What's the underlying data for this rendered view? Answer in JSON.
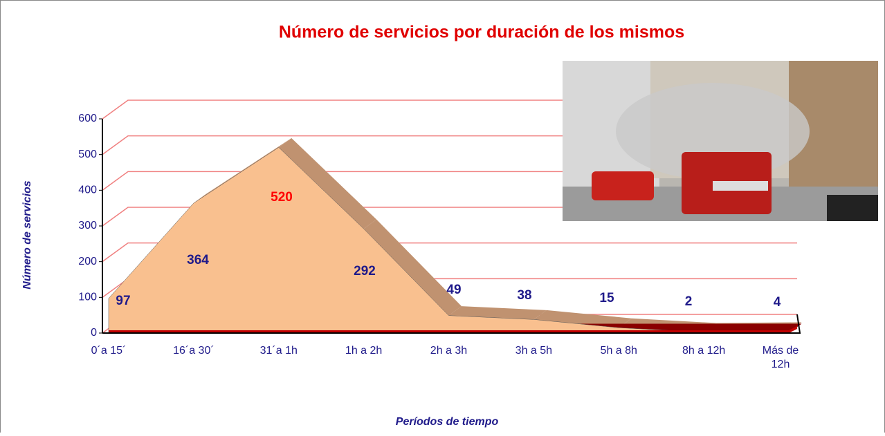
{
  "chart_data": {
    "type": "area3d",
    "title": "Número de servicios por duración de los mismos",
    "y_label": "Número de servicios",
    "x_label": "Períodos de tiempo",
    "categories": [
      "0´a 15´",
      "16´a 30´",
      "31´a 1h",
      "1h a 2h",
      "2h a 3h",
      "3h a 5h",
      "5h a 8h",
      "8h a 12h",
      "Más de 12h"
    ],
    "values": [
      97,
      364,
      520,
      292,
      49,
      38,
      15,
      2,
      4
    ],
    "color": "#f9c08f",
    "value_label_colors": [
      "#1f1a8a",
      "#1f1a8a",
      "#ff0000",
      "#1f1a8a",
      "#1f1a8a",
      "#1f1a8a",
      "#1f1a8a",
      "#1f1a8a",
      "#1f1a8a"
    ],
    "ylim": [
      0,
      600
    ],
    "yticks": [
      0,
      100,
      200,
      300,
      400,
      500,
      600
    ],
    "grid": true
  }
}
